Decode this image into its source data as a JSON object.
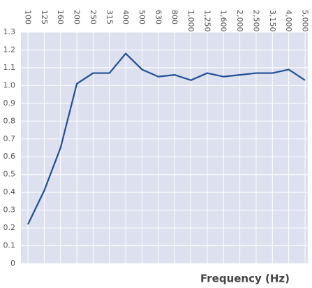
{
  "chart_data": {
    "type": "line",
    "xlabel": "Frequency (Hz)",
    "categories": [
      "100",
      "125",
      "160",
      "200",
      "250",
      "315",
      "400",
      "500",
      "630",
      "800",
      "1,000",
      "1,250",
      "1,600",
      "2,000",
      "2,500",
      "3,150",
      "4,000",
      "5,000"
    ],
    "values": [
      0.22,
      0.41,
      0.65,
      1.01,
      1.07,
      1.07,
      1.18,
      1.09,
      1.05,
      1.06,
      1.03,
      1.07,
      1.05,
      1.06,
      1.07,
      1.07,
      1.09,
      1.03
    ],
    "color": "#1f4e96",
    "ylim": [
      0,
      1.3
    ],
    "yticks": [
      0,
      0.1,
      0.2,
      0.3,
      0.4,
      0.5,
      0.6,
      0.7,
      0.8,
      0.9,
      {
        "value": 1,
        "label": "1.0"
      },
      1.1,
      1.2,
      1.3
    ],
    "grid": true
  }
}
